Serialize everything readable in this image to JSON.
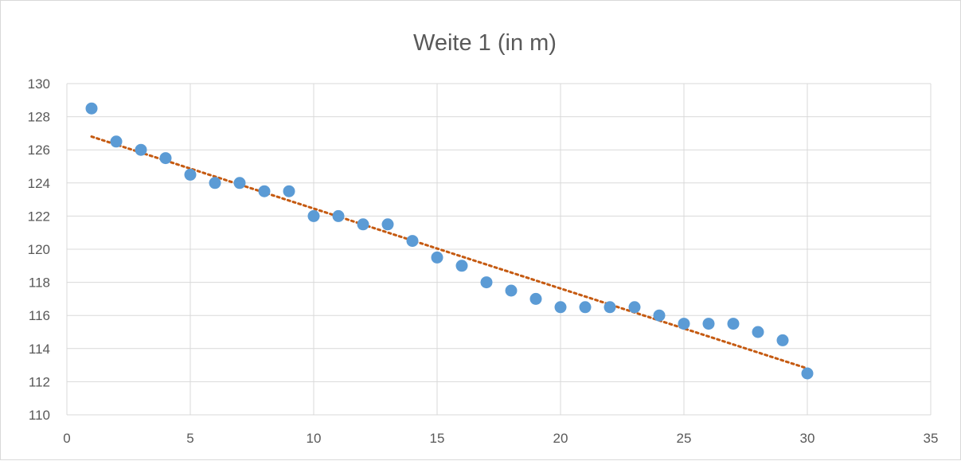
{
  "chart_data": {
    "type": "scatter",
    "title": "Weite 1 (in m)",
    "xlabel": "",
    "ylabel": "",
    "xlim": [
      0,
      35
    ],
    "ylim": [
      110,
      130
    ],
    "x_ticks": [
      0,
      5,
      10,
      15,
      20,
      25,
      30,
      35
    ],
    "y_ticks": [
      110,
      112,
      114,
      116,
      118,
      120,
      122,
      124,
      126,
      128,
      130
    ],
    "grid": true,
    "legend": "none",
    "series": [
      {
        "marker_color": "#5b9bd5",
        "x": [
          1,
          2,
          3,
          4,
          5,
          6,
          7,
          8,
          9,
          10,
          11,
          12,
          13,
          14,
          15,
          16,
          17,
          18,
          19,
          20,
          21,
          22,
          23,
          24,
          25,
          26,
          27,
          28,
          29,
          30
        ],
        "y": [
          128.5,
          126.5,
          126,
          125.5,
          124.5,
          124,
          124,
          123.5,
          123.5,
          122,
          122,
          121.5,
          121.5,
          120.5,
          119.5,
          119,
          118,
          117.5,
          117,
          116.5,
          116.5,
          116.5,
          116.5,
          116,
          115.5,
          115.5,
          115.5,
          115,
          114.5,
          112.5
        ]
      }
    ],
    "trendline": {
      "type": "linear",
      "style": "dotted",
      "color": "#c55a11",
      "x": [
        1,
        30
      ],
      "y": [
        126.8,
        112.8
      ]
    }
  }
}
